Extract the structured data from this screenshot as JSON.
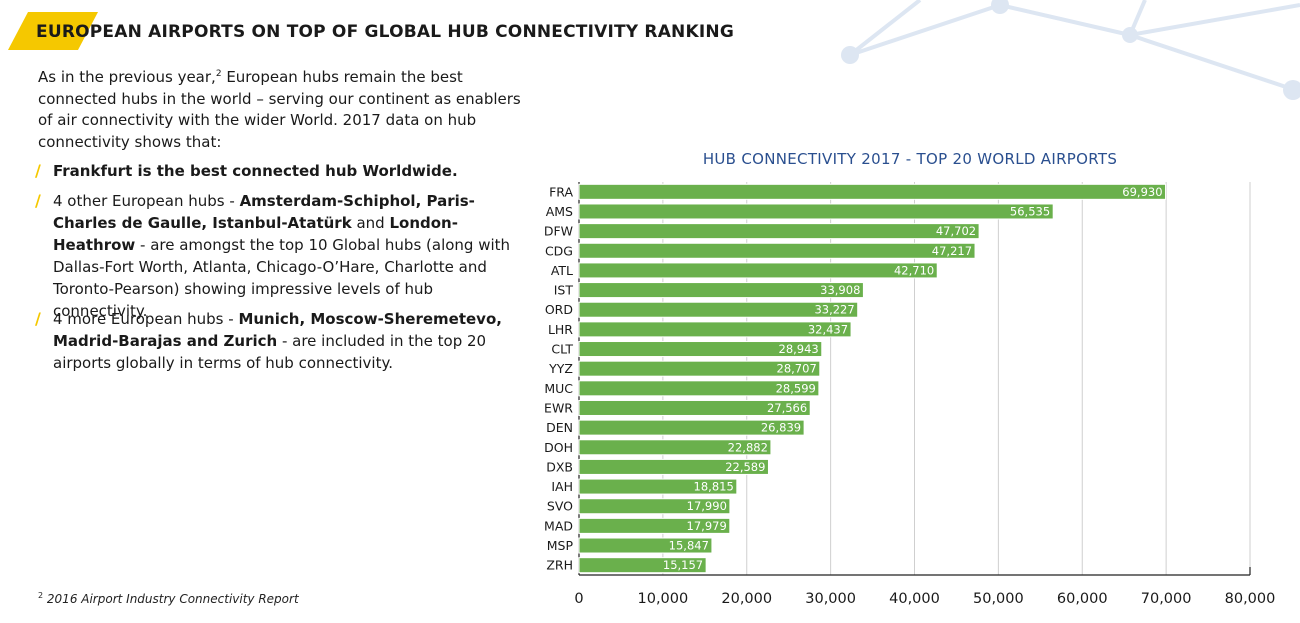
{
  "heading": "EUROPEAN AIRPORTS ON TOP OF GLOBAL HUB CONNECTIVITY RANKING",
  "intro": {
    "before_sup": "As in the previous year,",
    "sup": "2",
    "after_sup": " European hubs remain the best connected hubs in the world – serving our continent as enablers of air connectivity with the wider World. 2017 data on hub connectivity shows that:"
  },
  "bullet_marker": "/",
  "bullet1": {
    "bold": "Frankfurt is the best connected hub Worldwide."
  },
  "bullet2": {
    "t1": "4 other European hubs - ",
    "b1": "Amsterdam-Schiphol, Paris-Charles de Gaulle, Istanbul-Atatürk",
    "t2": " and ",
    "b2": "London-Heathrow",
    "t3": " - are amongst the top 10 Global hubs (along with Dallas-Fort Worth, Atlanta, Chicago-O’Hare, Charlotte and Toronto-Pearson) showing impressive levels of hub connectivity."
  },
  "bullet3": {
    "t1": "4 more European hubs - ",
    "b1": "Munich, Moscow-Sheremetevo, Madrid-Barajas and Zurich",
    "t2": " - are included in the top 20 airports globally in terms of hub connectivity."
  },
  "footnote": {
    "sup": "2",
    "text": " 2016 Airport Industry Connectivity Report"
  },
  "colors": {
    "bar": "#6ab04c",
    "accent": "#f5c800",
    "title": "#2a4f8f",
    "network": "#dde6f2"
  },
  "chart_data": {
    "type": "bar",
    "orientation": "horizontal",
    "title": "HUB CONNECTIVITY 2017 - TOP 20 WORLD AIRPORTS",
    "categories": [
      "FRA",
      "AMS",
      "DFW",
      "CDG",
      "ATL",
      "IST",
      "ORD",
      "LHR",
      "CLT",
      "YYZ",
      "MUC",
      "EWR",
      "DEN",
      "DOH",
      "DXB",
      "IAH",
      "SVO",
      "MAD",
      "MSP",
      "ZRH"
    ],
    "values": [
      69930,
      56535,
      47702,
      47217,
      42710,
      33908,
      33227,
      32437,
      28943,
      28707,
      28599,
      27566,
      26839,
      22882,
      22589,
      18815,
      17990,
      17979,
      15847,
      15157
    ],
    "value_labels": [
      "69,930",
      "56,535",
      "47,702",
      "47,217",
      "42,710",
      "33,908",
      "33,227",
      "32,437",
      "28,943",
      "28,707",
      "28,599",
      "27,566",
      "26,839",
      "22,882",
      "22,589",
      "18,815",
      "17,990",
      "17,979",
      "15,847",
      "15,157"
    ],
    "xlim": [
      0,
      80000
    ],
    "xticks": [
      0,
      10000,
      20000,
      30000,
      40000,
      50000,
      60000,
      70000,
      80000
    ],
    "xtick_labels": [
      "0",
      "10,000",
      "20,000",
      "30,000",
      "40,000",
      "50,000",
      "60,000",
      "70,000",
      "80,000"
    ],
    "grid": true,
    "xlabel": "",
    "ylabel": ""
  }
}
